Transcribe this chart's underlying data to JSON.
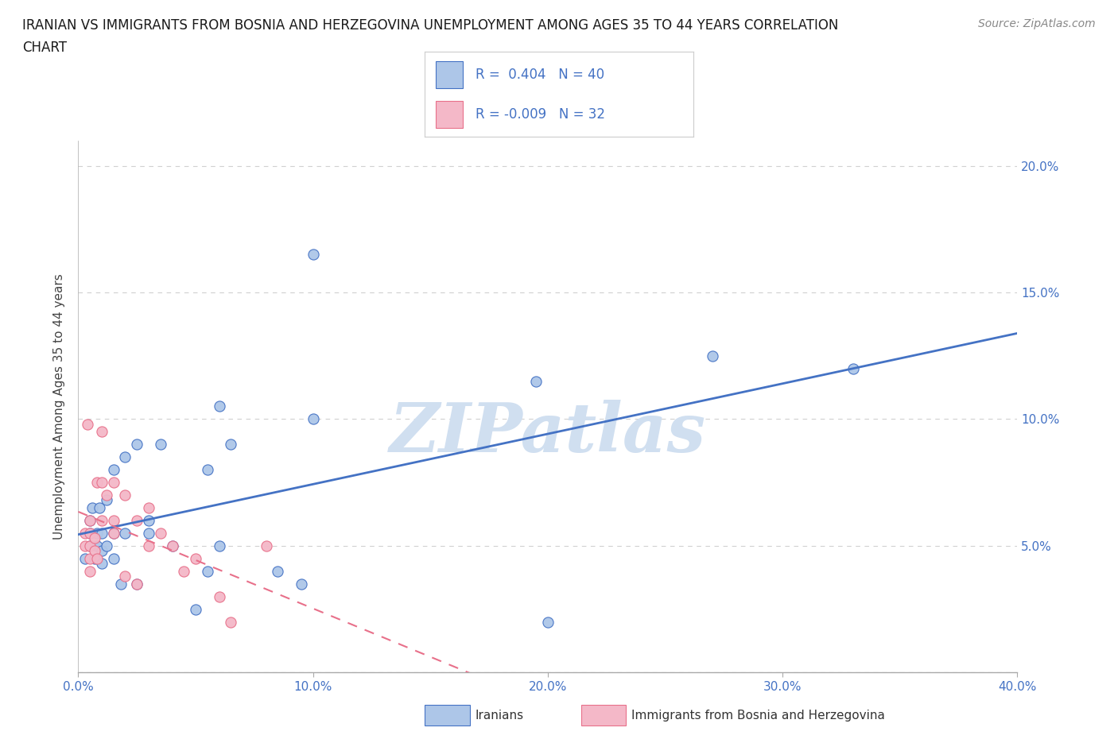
{
  "title_line1": "IRANIAN VS IMMIGRANTS FROM BOSNIA AND HERZEGOVINA UNEMPLOYMENT AMONG AGES 35 TO 44 YEARS CORRELATION",
  "title_line2": "CHART",
  "source_text": "Source: ZipAtlas.com",
  "ylabel": "Unemployment Among Ages 35 to 44 years",
  "xlim": [
    0.0,
    40.0
  ],
  "ylim": [
    0.0,
    21.0
  ],
  "xtick_positions": [
    0.0,
    10.0,
    20.0,
    30.0,
    40.0
  ],
  "xtick_labels": [
    "0.0%",
    "10.0%",
    "20.0%",
    "30.0%",
    "40.0%"
  ],
  "ytick_positions": [
    0.0,
    5.0,
    10.0,
    15.0,
    20.0
  ],
  "ytick_labels_right": [
    "",
    "5.0%",
    "10.0%",
    "15.0%",
    "20.0%"
  ],
  "iranian_color": "#adc6e8",
  "bosnian_color": "#f4b8c8",
  "iranian_line_color": "#4472c4",
  "bosnian_line_color": "#e8708a",
  "watermark_color": "#d0dff0",
  "R_iranian": 0.404,
  "N_iranian": 40,
  "R_bosnian": -0.009,
  "N_bosnian": 32,
  "legend_label_iranian": "Iranians",
  "legend_label_bosnian": "Immigrants from Bosnia and Herzegovina",
  "iranians_x": [
    0.3,
    0.5,
    0.5,
    0.5,
    0.6,
    0.7,
    0.8,
    0.8,
    0.9,
    1.0,
    1.0,
    1.0,
    1.2,
    1.2,
    1.5,
    1.5,
    1.5,
    1.8,
    2.0,
    2.0,
    2.5,
    2.5,
    3.0,
    3.0,
    3.5,
    4.0,
    5.0,
    5.5,
    5.5,
    6.0,
    6.0,
    6.5,
    8.5,
    9.5,
    10.0,
    10.0,
    19.5,
    20.0,
    27.0,
    33.0
  ],
  "iranians_y": [
    4.5,
    5.0,
    5.5,
    6.0,
    6.5,
    4.5,
    5.0,
    5.5,
    6.5,
    4.3,
    4.8,
    5.5,
    5.0,
    6.8,
    4.5,
    5.5,
    8.0,
    3.5,
    8.5,
    5.5,
    9.0,
    3.5,
    5.5,
    6.0,
    9.0,
    5.0,
    2.5,
    4.0,
    8.0,
    5.0,
    10.5,
    9.0,
    4.0,
    3.5,
    16.5,
    10.0,
    11.5,
    2.0,
    12.5,
    12.0
  ],
  "bosnians_x": [
    0.3,
    0.3,
    0.5,
    0.5,
    0.5,
    0.5,
    0.5,
    0.7,
    0.7,
    0.8,
    0.8,
    1.0,
    1.0,
    1.0,
    1.2,
    1.5,
    1.5,
    1.5,
    2.0,
    2.0,
    2.5,
    2.5,
    3.0,
    3.0,
    3.5,
    4.0,
    4.5,
    5.0,
    6.0,
    6.5,
    8.0,
    0.4
  ],
  "bosnians_y": [
    5.0,
    5.5,
    4.0,
    4.5,
    5.0,
    5.5,
    6.0,
    4.8,
    5.3,
    4.5,
    7.5,
    6.0,
    7.5,
    9.5,
    7.0,
    5.5,
    6.0,
    7.5,
    3.8,
    7.0,
    3.5,
    6.0,
    5.0,
    6.5,
    5.5,
    5.0,
    4.0,
    4.5,
    3.0,
    2.0,
    5.0,
    9.8
  ],
  "background_color": "#ffffff",
  "grid_color": "#d0d0d0",
  "title_fontsize": 12,
  "source_fontsize": 10,
  "axis_tick_fontsize": 11,
  "ylabel_fontsize": 11
}
